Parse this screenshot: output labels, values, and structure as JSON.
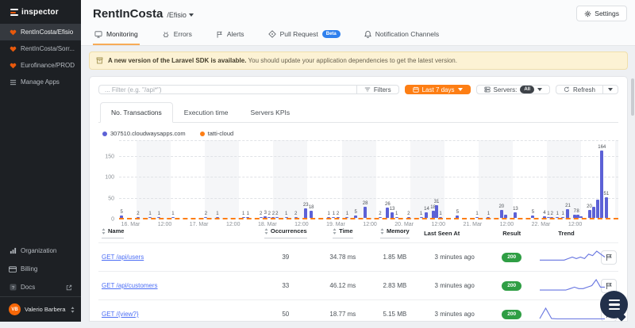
{
  "sidebar": {
    "logo": "inspector",
    "items": [
      {
        "label": "RentInCosta/Efisio",
        "icon": "app-heart-icon",
        "active": true
      },
      {
        "label": "RentInCosta/Sorr...",
        "icon": "app-heart-icon",
        "active": false
      },
      {
        "label": "Eurofinance/PROD",
        "icon": "app-heart-icon",
        "active": false
      },
      {
        "label": "Manage Apps",
        "icon": "list-icon",
        "active": false
      }
    ],
    "footer_items": [
      {
        "label": "Organization",
        "icon": "org-chart-icon"
      },
      {
        "label": "Billing",
        "icon": "credit-card-icon"
      },
      {
        "label": "Docs",
        "icon": "docs-question-icon",
        "external": true
      }
    ],
    "user": {
      "initials": "VB",
      "name": "Valerio Barbera"
    }
  },
  "header": {
    "title": "RentInCosta",
    "subtitle": "/Efisio",
    "settings_label": "Settings"
  },
  "tabs": [
    {
      "label": "Monitoring",
      "icon": "monitor-icon",
      "active": true
    },
    {
      "label": "Errors",
      "icon": "bug-icon",
      "active": false
    },
    {
      "label": "Alerts",
      "icon": "flag-icon",
      "active": false
    },
    {
      "label": "Pull Request",
      "icon": "git-pr-icon",
      "badge": "Beta",
      "active": false
    },
    {
      "label": "Notification Channels",
      "icon": "bell-icon",
      "active": false
    }
  ],
  "banner": {
    "bold": "A new version of the Laravel SDK is available.",
    "text": "You should update your application dependencies to get the latest version."
  },
  "toolbar": {
    "filter_placeholder": "... Filter (e.g. \"/api*\")",
    "filters_label": "Filters",
    "range_label": "Last 7 days",
    "servers_label": "Servers:",
    "servers_value": "All",
    "refresh_label": "Refresh"
  },
  "chart_tabs": [
    {
      "label": "No. Transactions",
      "active": true
    },
    {
      "label": "Execution time",
      "active": false
    },
    {
      "label": "Servers KPIs",
      "active": false
    }
  ],
  "chart_data": {
    "type": "bar",
    "title": "No. Transactions",
    "ylim": [
      0,
      190
    ],
    "yticks": [
      0,
      50,
      100,
      150
    ],
    "xticks": [
      "16. Mar",
      "12:00",
      "17. Mar",
      "12:00",
      "18. Mar",
      "12:00",
      "19. Mar",
      "12:00",
      "20. Mar",
      "12:00",
      "21. Mar",
      "12:00",
      "22. Mar",
      "12:00"
    ],
    "series": [
      {
        "name": "307510.cloudwaysapps.com",
        "color": "#5c61d6",
        "bars": [
          [
            0.5,
            5
          ],
          [
            3.8,
            2
          ],
          [
            6.2,
            1
          ],
          [
            8.0,
            1
          ],
          [
            10.8,
            1
          ],
          [
            17.4,
            2
          ],
          [
            19.7,
            1
          ],
          [
            24.9,
            1
          ],
          [
            25.8,
            1
          ],
          [
            28.4,
            2
          ],
          [
            29.3,
            3
          ],
          [
            30.1,
            2
          ],
          [
            30.9,
            2
          ],
          [
            31.6,
            2
          ],
          [
            33.5,
            1
          ],
          [
            35.4,
            2
          ],
          [
            37.4,
            23
          ],
          [
            38.5,
            18
          ],
          [
            42.0,
            1
          ],
          [
            43.0,
            1
          ],
          [
            43.8,
            2
          ],
          [
            45.7,
            1
          ],
          [
            47.4,
            5
          ],
          [
            49.3,
            28
          ],
          [
            52.3,
            2
          ],
          [
            53.8,
            26
          ],
          [
            54.7,
            13
          ],
          [
            55.6,
            1
          ],
          [
            58.0,
            2
          ],
          [
            60.5,
            1
          ],
          [
            61.6,
            14
          ],
          [
            62.9,
            18
          ],
          [
            63.6,
            31
          ],
          [
            64.4,
            1
          ],
          [
            67.8,
            5
          ],
          [
            71.7,
            1
          ],
          [
            74.0,
            1
          ],
          [
            76.6,
            20
          ],
          [
            77.5,
            8,
            0
          ],
          [
            79.4,
            13
          ],
          [
            82.9,
            5
          ],
          [
            85.2,
            4
          ],
          [
            86.0,
            1
          ],
          [
            86.7,
            2
          ],
          [
            87.8,
            1
          ],
          [
            88.9,
            1
          ],
          [
            89.9,
            21
          ],
          [
            91.3,
            7
          ],
          [
            91.9,
            8
          ],
          [
            92.6,
            3,
            0
          ],
          [
            94.2,
            20
          ],
          [
            95.1,
            28,
            0
          ],
          [
            95.9,
            45,
            0
          ],
          [
            96.7,
            164
          ],
          [
            97.6,
            51
          ]
        ]
      },
      {
        "name": "tatti-cloud",
        "color": "#fd7e14",
        "bars": "flat-zero-dashed-line"
      }
    ]
  },
  "table": {
    "headers": [
      {
        "label": "Name",
        "sortable": true
      },
      {
        "label": "Occurrences",
        "sortable": true
      },
      {
        "label": "Time",
        "sortable": true
      },
      {
        "label": "Memory",
        "sortable": true
      },
      {
        "label": "Last Seen At",
        "sortable": false
      },
      {
        "label": "Result",
        "sortable": false
      },
      {
        "label": "Trend",
        "sortable": false
      }
    ],
    "rows": [
      {
        "name": "GET /api/users",
        "occurrences": "39",
        "time": "34.78 ms",
        "memory": "1.85 MB",
        "last_seen": "3 minutes ago",
        "result": "200",
        "trend": [
          2,
          2,
          2,
          2,
          2,
          2,
          2,
          3,
          4,
          3,
          4,
          3,
          6,
          5,
          8,
          6,
          4
        ]
      },
      {
        "name": "GET /api/customers",
        "occurrences": "33",
        "time": "46.12 ms",
        "memory": "2.83 MB",
        "last_seen": "3 minutes ago",
        "result": "200",
        "trend": [
          1,
          1,
          1,
          1,
          1,
          1,
          1,
          2,
          3,
          2,
          2,
          3,
          4,
          8,
          3,
          3
        ]
      },
      {
        "name": "GET /{view?}",
        "occurrences": "50",
        "time": "18.77 ms",
        "memory": "5.15 MB",
        "last_seen": "3 minutes ago",
        "result": "200",
        "trend": [
          1,
          8,
          1,
          0.8,
          0.8,
          0.8,
          0.8,
          0.8,
          0.8,
          0.8,
          0.8,
          0.8
        ]
      }
    ]
  }
}
